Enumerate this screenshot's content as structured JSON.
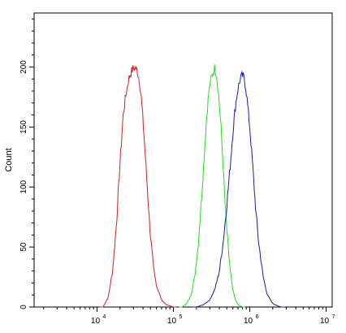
{
  "chart_data": {
    "type": "line",
    "title": "",
    "xlabel": "",
    "ylabel": "Count",
    "xscale": "log",
    "xlim": [
      1500,
      12000000
    ],
    "ylim": [
      0,
      245
    ],
    "grid": false,
    "legend": "none",
    "x_ticks": [
      {
        "base": "10",
        "exp": "4",
        "value": 10000
      },
      {
        "base": "10",
        "exp": "5",
        "value": 100000
      },
      {
        "base": "10",
        "exp": "6",
        "value": 1000000
      },
      {
        "base": "10",
        "exp": "7",
        "value": 10000000
      }
    ],
    "y_ticks": [
      {
        "label": "0",
        "value": 0
      },
      {
        "label": "50",
        "value": 50
      },
      {
        "label": "100",
        "value": 100
      },
      {
        "label": "150",
        "value": 150
      },
      {
        "label": "200",
        "value": 200
      }
    ],
    "series": [
      {
        "color": "#cc2222",
        "x": [
          12000,
          14000,
          16000,
          18000,
          20000,
          22000,
          24000,
          26000,
          28000,
          30000,
          32000,
          34000,
          36000,
          38000,
          40000,
          43000,
          46000,
          50000,
          55000,
          60000,
          70000,
          80000,
          90000,
          100000
        ],
        "y": [
          0,
          8,
          30,
          70,
          120,
          160,
          178,
          190,
          196,
          199,
          199,
          196,
          188,
          175,
          155,
          125,
          95,
          60,
          32,
          18,
          6,
          2,
          1,
          0
        ]
      },
      {
        "color": "#22dd22",
        "x": [
          130000,
          150000,
          170000,
          190000,
          210000,
          230000,
          250000,
          270000,
          290000,
          310000,
          330000,
          350000,
          370000,
          390000,
          420000,
          450000,
          480000,
          520000,
          560000,
          600000,
          650000,
          700000,
          800000
        ],
        "y": [
          0,
          3,
          10,
          25,
          50,
          85,
          120,
          155,
          178,
          190,
          195,
          200,
          192,
          178,
          150,
          115,
          80,
          50,
          28,
          14,
          6,
          2,
          0
        ]
      },
      {
        "color": "#1a1aaa",
        "x": [
          200000,
          250000,
          300000,
          350000,
          400000,
          450000,
          500000,
          550000,
          600000,
          650000,
          700000,
          750000,
          800000,
          850000,
          900000,
          1000000,
          1100000,
          1200000,
          1300000,
          1500000,
          1700000,
          2000000,
          2300000,
          2600000
        ],
        "y": [
          0,
          2,
          6,
          15,
          30,
          55,
          85,
          115,
          145,
          168,
          182,
          190,
          193,
          190,
          180,
          150,
          115,
          80,
          55,
          25,
          10,
          3,
          1,
          0
        ]
      }
    ]
  }
}
